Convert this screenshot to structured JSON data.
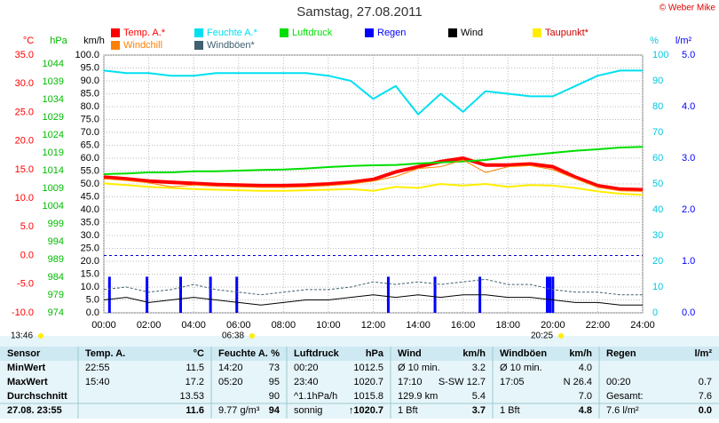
{
  "title": "Samstag, 27.08.2011",
  "copyright": "© Weber Mike",
  "chart_data": {
    "type": "line",
    "x": [
      0,
      1,
      2,
      3,
      4,
      5,
      6,
      7,
      8,
      9,
      10,
      11,
      12,
      13,
      14,
      15,
      16,
      17,
      18,
      19,
      20,
      21,
      22,
      23,
      24
    ],
    "xlim": [
      0,
      24
    ],
    "xticks": [
      {
        "value": 0,
        "label": "00:00"
      },
      {
        "value": 2,
        "label": "02:00"
      },
      {
        "value": 4,
        "label": "04:00"
      },
      {
        "value": 6,
        "label": "06:00"
      },
      {
        "value": 8,
        "label": "08:00"
      },
      {
        "value": 10,
        "label": "10:00"
      },
      {
        "value": 12,
        "label": "12:00"
      },
      {
        "value": 14,
        "label": "14:00"
      },
      {
        "value": 16,
        "label": "16:00"
      },
      {
        "value": 18,
        "label": "18:00"
      },
      {
        "value": 20,
        "label": "20:00"
      },
      {
        "value": 22,
        "label": "22:00"
      },
      {
        "value": 24,
        "label": "24:00"
      }
    ],
    "grid": true,
    "axes": [
      {
        "label": "°C",
        "side": "left",
        "color": "#ff0000",
        "lim": [
          -10,
          35
        ],
        "ticks": [
          {
            "value": -10,
            "label": "-10.0"
          },
          {
            "value": -5,
            "label": "-5.0"
          },
          {
            "value": 0,
            "label": "0.0"
          },
          {
            "value": 5,
            "label": "5.0"
          },
          {
            "value": 10,
            "label": "10.0"
          },
          {
            "value": 15,
            "label": "15.0"
          },
          {
            "value": 20,
            "label": "20.0"
          },
          {
            "value": 25,
            "label": "25.0"
          },
          {
            "value": 30,
            "label": "30.0"
          },
          {
            "value": 35,
            "label": "35.0"
          }
        ]
      },
      {
        "label": "hPa",
        "side": "left",
        "color": "#00bb00",
        "lim": [
          974,
          1046.5
        ],
        "ticks": [
          974,
          979,
          984,
          989,
          994,
          999,
          1004,
          1009,
          1014,
          1019,
          1024,
          1029,
          1034,
          1039,
          1044
        ]
      },
      {
        "label": "km/h",
        "side": "left",
        "color": "#000000",
        "lim": [
          0,
          100
        ],
        "ticks": [
          {
            "value": 0,
            "label": "0.0"
          },
          {
            "value": 5,
            "label": "5.0"
          },
          {
            "value": 10,
            "label": "10.0"
          },
          {
            "value": 15,
            "label": "15.0"
          },
          {
            "value": 20,
            "label": "20.0"
          },
          {
            "value": 25,
            "label": "25.0"
          },
          {
            "value": 30,
            "label": "30.0"
          },
          {
            "value": 35,
            "label": "35.0"
          },
          {
            "value": 40,
            "label": "40.0"
          },
          {
            "value": 45,
            "label": "45.0"
          },
          {
            "value": 50,
            "label": "50.0"
          },
          {
            "value": 55,
            "label": "55.0"
          },
          {
            "value": 60,
            "label": "60.0"
          },
          {
            "value": 65,
            "label": "65.0"
          },
          {
            "value": 70,
            "label": "70.0"
          },
          {
            "value": 75,
            "label": "75.0"
          },
          {
            "value": 80,
            "label": "80.0"
          },
          {
            "value": 85,
            "label": "85.0"
          },
          {
            "value": 90,
            "label": "90.0"
          },
          {
            "value": 95,
            "label": "95.0"
          },
          {
            "value": 100,
            "label": "100.0"
          }
        ]
      },
      {
        "label": "%",
        "side": "right",
        "color": "#00c8e0",
        "lim": [
          0,
          100
        ],
        "ticks": [
          0,
          10,
          20,
          30,
          40,
          50,
          60,
          70,
          80,
          90,
          100
        ]
      },
      {
        "label": "l/m²",
        "side": "right",
        "color": "#0000ff",
        "lim": [
          0,
          5
        ],
        "ticks": [
          {
            "value": 0,
            "label": "0.0"
          },
          {
            "value": 1,
            "label": "1.0"
          },
          {
            "value": 2,
            "label": "2.0"
          },
          {
            "value": 3,
            "label": "3.0"
          },
          {
            "value": 4,
            "label": "4.0"
          },
          {
            "value": 5,
            "label": "5.0"
          }
        ]
      }
    ],
    "grid_axis": 2,
    "series": [
      {
        "name": "Temp. A.*",
        "color": "#ff0000",
        "axis": 0,
        "width": 4,
        "values": [
          13.7,
          13.4,
          13.0,
          12.8,
          12.6,
          12.4,
          12.3,
          12.2,
          12.2,
          12.3,
          12.5,
          12.8,
          13.3,
          14.6,
          15.5,
          16.4,
          17.0,
          15.8,
          15.8,
          16.0,
          15.5,
          13.7,
          12.2,
          11.6,
          11.5
        ]
      },
      {
        "name": "Feuchte A.*",
        "color": "#00e0f0",
        "axis": 3,
        "width": 2,
        "values": [
          94,
          93,
          93,
          92,
          92,
          93,
          93,
          93,
          93,
          93,
          92,
          90,
          83,
          88,
          77,
          85,
          78,
          86,
          85,
          84,
          84,
          88,
          92,
          94,
          94
        ]
      },
      {
        "name": "Luftdruck",
        "color": "#00dd00",
        "axis": 1,
        "width": 2,
        "values": [
          1013.0,
          1013.2,
          1013.5,
          1013.5,
          1013.8,
          1013.8,
          1014.0,
          1014.2,
          1014.3,
          1014.6,
          1015.0,
          1015.3,
          1015.5,
          1015.6,
          1016.0,
          1016.3,
          1016.6,
          1017.0,
          1017.8,
          1018.4,
          1019.0,
          1019.6,
          1020.0,
          1020.5,
          1020.7
        ]
      },
      {
        "name": "Regen",
        "color": "#0000ff",
        "axis": 4,
        "kind": "bar",
        "x": [
          0.25,
          1.92,
          3.42,
          4.75,
          5.92,
          12.67,
          14.75,
          16.75,
          19.75,
          19.87,
          20.0
        ],
        "values": [
          0.7,
          0.7,
          0.7,
          0.7,
          0.7,
          0.7,
          0.7,
          0.7,
          0.7,
          0.7,
          0.7
        ]
      },
      {
        "name": "Wind",
        "color": "#000000",
        "axis": 2,
        "width": 1,
        "values": [
          5,
          6,
          4,
          5,
          6,
          5,
          4,
          3,
          4,
          5,
          5,
          6,
          7,
          6,
          7,
          6,
          7,
          7,
          6,
          6,
          5,
          4,
          4,
          3,
          3
        ]
      },
      {
        "name": "Taupunkt*",
        "color": "#ffee00",
        "axis": 0,
        "width": 2,
        "values": [
          12.6,
          12.3,
          12.0,
          11.8,
          11.6,
          11.5,
          11.4,
          11.3,
          11.3,
          11.4,
          11.5,
          11.6,
          11.3,
          12.0,
          11.8,
          12.5,
          12.2,
          12.5,
          12.0,
          12.3,
          12.2,
          11.8,
          11.2,
          10.8,
          10.6
        ]
      },
      {
        "name": "Windchill",
        "color": "#ff8000",
        "axis": 0,
        "width": 1,
        "values": [
          13.4,
          13.1,
          12.7,
          12.0,
          12.3,
          12.1,
          12.0,
          11.9,
          11.9,
          12.0,
          12.2,
          12.5,
          13.0,
          13.8,
          15.2,
          15.5,
          16.7,
          14.5,
          15.5,
          15.7,
          15.0,
          13.4,
          11.9,
          11.3,
          11.2
        ]
      },
      {
        "name": "Windböen*",
        "color": "#406070",
        "axis": 2,
        "width": 1,
        "dash": "3 2",
        "values": [
          9,
          10,
          8,
          9,
          11,
          9,
          8,
          7,
          8,
          9,
          9,
          10,
          12,
          11,
          12,
          11,
          12,
          13,
          11,
          11,
          9,
          8,
          8,
          7,
          7
        ]
      }
    ]
  },
  "sun_moon": [
    "13:46",
    "06:38",
    "20:25"
  ],
  "table": {
    "header": [
      {
        "left": "Sensor"
      },
      {
        "left": "Temp. A.",
        "right": "°C"
      },
      {
        "left": "Feuchte A.",
        "right": "%"
      },
      {
        "left": "Luftdruck",
        "right": "hPa"
      },
      {
        "left": "Wind",
        "right": "km/h"
      },
      {
        "left": "Windböen",
        "right": "km/h"
      },
      {
        "left": "Regen",
        "right": "l/m²"
      }
    ],
    "rows": [
      {
        "label": "MinWert",
        "cells": [
          {
            "left": "22:55",
            "right": "11.5"
          },
          {
            "left": "14:20",
            "right": "73"
          },
          {
            "left": "00:20",
            "right": "1012.5"
          },
          {
            "left": "Ø 10 min.",
            "right": "3.2"
          },
          {
            "left": "Ø 10 min.",
            "right": "4.0"
          },
          {}
        ]
      },
      {
        "label": "MaxWert",
        "cells": [
          {
            "left": "15:40",
            "right": "17.2"
          },
          {
            "left": "05:20",
            "right": "95"
          },
          {
            "left": "23:40",
            "right": "1020.7"
          },
          {
            "left": "17:10",
            "right": "S-SW 12.7"
          },
          {
            "left": "17:05",
            "right": "N 26.4"
          },
          {
            "left": "00:20",
            "right": "0.7"
          }
        ]
      },
      {
        "label": "Durchschnitt",
        "cells": [
          {
            "right": "13.53"
          },
          {
            "right": "90"
          },
          {
            "left": "^1.1hPa/h",
            "right": "1015.8"
          },
          {
            "left": "129.9 km",
            "right": "5.4"
          },
          {
            "right": "7.0"
          },
          {
            "left": "Gesamt:",
            "right": "7.6"
          }
        ]
      },
      {
        "label": "27.08. 23:55",
        "cells": [
          {
            "right": "11.6"
          },
          {
            "left": "9.77 g/m³",
            "right": "94"
          },
          {
            "left": "sonnig",
            "right": "↑1020.7"
          },
          {
            "left": "1 Bft",
            "right": "3.7"
          },
          {
            "left": "1 Bft",
            "right": "4.8"
          },
          {
            "left": "7.6 l/m²",
            "right": "0.0"
          }
        ]
      }
    ]
  }
}
